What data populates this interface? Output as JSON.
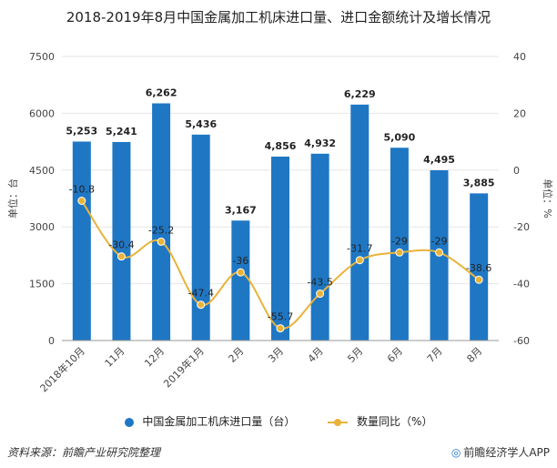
{
  "title": "2018-2019年8月中国金属加工机床进口量、进口金额统计及增长情况",
  "footer": {
    "source": "资料来源：前瞻产业研究院整理",
    "brand": "前瞻经济学人APP"
  },
  "colors": {
    "bar": "#1f77c4",
    "line": "#e8b33a",
    "grid": "#e6e6e6"
  },
  "chart_data": {
    "type": "bar",
    "categories": [
      "2018年10月",
      "11月",
      "12月",
      "2019年1月",
      "2月",
      "3月",
      "4月",
      "5月",
      "6月",
      "7月",
      "8月"
    ],
    "series": [
      {
        "name": "中国金属加工机床进口量（台）",
        "type": "bar",
        "axis": "left",
        "values": [
          5253,
          5241,
          6262,
          5436,
          3167,
          4856,
          4932,
          6229,
          5090,
          4495,
          3885
        ],
        "labels": [
          "5,253",
          "5,241",
          "6,262",
          "5,436",
          "3,167",
          "4,856",
          "4,932",
          "6,229",
          "5,090",
          "4,495",
          "3,885"
        ]
      },
      {
        "name": "数量同比（%）",
        "type": "line",
        "axis": "right",
        "values": [
          -10.8,
          -30.4,
          -25.2,
          -47.4,
          -36,
          -55.7,
          -43.5,
          -31.7,
          -29,
          -29,
          -38.6
        ],
        "labels": [
          "-10.8",
          "-30.4",
          "-25.2",
          "-47.4",
          "-36",
          "-55.7",
          "-43.5",
          "-31.7",
          "-29",
          "-29",
          "-38.6"
        ]
      }
    ],
    "y_left": {
      "label": "单位：台",
      "range": [
        0,
        7500
      ],
      "ticks": [
        0,
        1500,
        3000,
        4500,
        6000,
        7500
      ],
      "tick_labels": [
        "0",
        "1500",
        "3000",
        "4500",
        "6000",
        "7500"
      ]
    },
    "y_right": {
      "label": "单位：%",
      "range": [
        -60,
        40
      ],
      "ticks": [
        -60,
        -40,
        -20,
        0,
        20,
        40
      ],
      "tick_labels": [
        "-60",
        "-40",
        "-20",
        "0",
        "20",
        "40"
      ]
    },
    "grid": true,
    "legend_position": "bottom"
  }
}
